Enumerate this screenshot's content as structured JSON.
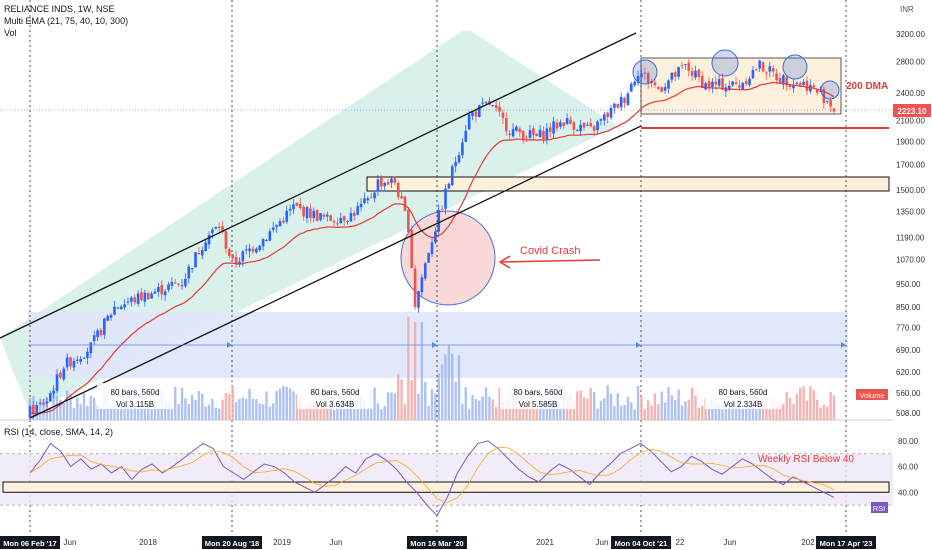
{
  "header": {
    "symbol": "RELIANCE INDS, 1W, NSE",
    "indicator": "Multi EMA (21, 75, 40, 10, 300)",
    "volume_label": "Vol"
  },
  "colors": {
    "up": "#2962ff",
    "down": "#ef5350",
    "ema": "#e53935",
    "channel_fill": "#d9f1ea",
    "range_fill": "#fdf0dc",
    "measure_fill": "#dfe6fb",
    "covid_fill": "#f9d6d6",
    "rsi_line": "#7e57c2",
    "rsi_band": "#ede7f6"
  },
  "chart_data": {
    "type": "candlestick",
    "title": "RELIANCE INDS, 1W, NSE",
    "currency": "INR",
    "price_range": [
      500,
      3300
    ],
    "scale": "log",
    "price_ticks": [
      3200,
      2800,
      2400,
      2100,
      1900,
      1700,
      1500,
      1350,
      1190,
      1070,
      950,
      850,
      770,
      690,
      620,
      560,
      508
    ],
    "current_price_label": "2223.10",
    "ohlc_anchors": [
      {
        "t": 0,
        "close": 510
      },
      {
        "t": 5,
        "close": 540
      },
      {
        "t": 10,
        "close": 640
      },
      {
        "t": 18,
        "close": 700
      },
      {
        "t": 25,
        "close": 850
      },
      {
        "t": 35,
        "close": 905
      },
      {
        "t": 45,
        "close": 960
      },
      {
        "t": 52,
        "close": 1190
      },
      {
        "t": 56,
        "close": 1260
      },
      {
        "t": 60,
        "close": 1050
      },
      {
        "t": 70,
        "close": 1200
      },
      {
        "t": 78,
        "close": 1380
      },
      {
        "t": 88,
        "close": 1300
      },
      {
        "t": 95,
        "close": 1330
      },
      {
        "t": 100,
        "close": 1420
      },
      {
        "t": 103,
        "close": 1560
      },
      {
        "t": 108,
        "close": 1560
      },
      {
        "t": 112,
        "close": 1260
      },
      {
        "t": 114,
        "close": 860
      },
      {
        "t": 118,
        "close": 1120
      },
      {
        "t": 124,
        "close": 1560
      },
      {
        "t": 130,
        "close": 2150
      },
      {
        "t": 136,
        "close": 2280
      },
      {
        "t": 142,
        "close": 2010
      },
      {
        "t": 150,
        "close": 1940
      },
      {
        "t": 158,
        "close": 2100
      },
      {
        "t": 166,
        "close": 2000
      },
      {
        "t": 172,
        "close": 2200
      },
      {
        "t": 176,
        "close": 2350
      },
      {
        "t": 180,
        "close": 2680
      },
      {
        "t": 186,
        "close": 2450
      },
      {
        "t": 194,
        "close": 2730
      },
      {
        "t": 200,
        "close": 2500
      },
      {
        "t": 210,
        "close": 2500
      },
      {
        "t": 216,
        "close": 2750
      },
      {
        "t": 222,
        "close": 2580
      },
      {
        "t": 230,
        "close": 2500
      },
      {
        "t": 236,
        "close": 2330
      },
      {
        "t": 238,
        "close": 2223
      }
    ],
    "annotations": {
      "covid": "Covid Crash",
      "dma": "200 DMA",
      "rsi_note": "Weekly RSI Below 40",
      "measures": [
        {
          "bars": "80 bars, 560d",
          "vol": "Vol 3.115B"
        },
        {
          "bars": "80 bars, 560d",
          "vol": "Vol 3.634B"
        },
        {
          "bars": "80 bars, 560d",
          "vol": "Vol 5.585B"
        },
        {
          "bars": "80 bars, 560d",
          "vol": "Vol 2.334B"
        }
      ]
    },
    "x_ticks": [
      "Jun",
      "2018",
      "2019",
      "Jun",
      "2021",
      "Jun",
      "22",
      "Jun",
      "202"
    ],
    "date_markers": [
      "Mon 06 Feb '17",
      "Mon 20 Aug '18",
      "Mon 16 Mar '20",
      "Mon 04 Oct '21",
      "Mon 17 Apr '23"
    ],
    "volume_tag": "Volume",
    "rsi": {
      "label": "RSI (14, close, SMA, 14, 2)",
      "tag": "RSI",
      "range": [
        20,
        90
      ],
      "ticks": [
        "80.00",
        "60.00",
        "40.00"
      ],
      "values": [
        55,
        65,
        78,
        72,
        60,
        66,
        58,
        62,
        55,
        60,
        50,
        58,
        62,
        55,
        60,
        66,
        72,
        78,
        74,
        60,
        55,
        50,
        56,
        62,
        60,
        55,
        48,
        44,
        40,
        46,
        52,
        60,
        55,
        66,
        70,
        65,
        58,
        48,
        40,
        30,
        22,
        36,
        55,
        68,
        78,
        80,
        74,
        66,
        58,
        52,
        48,
        56,
        62,
        58,
        52,
        46,
        55,
        62,
        70,
        74,
        78,
        72,
        64,
        56,
        60,
        68,
        64,
        58,
        54,
        60,
        66,
        62,
        56,
        50,
        46,
        52,
        48,
        44,
        40,
        36
      ]
    }
  }
}
